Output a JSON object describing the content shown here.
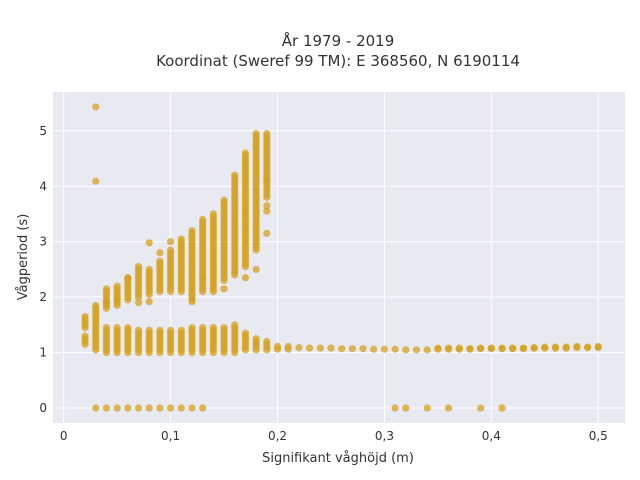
{
  "chart_data": {
    "type": "scatter",
    "title_line1": "År 1979 - 2019",
    "title_line2": "Koordinat (Sweref 99 TM): E 368560, N 6190114",
    "xlabel": "Signifikant våghöjd (m)",
    "ylabel": "Vågperiod (s)",
    "xlim": [
      -0.01,
      0.525
    ],
    "ylim": [
      -0.27,
      5.7
    ],
    "x_ticks": [
      0,
      0.1,
      0.2,
      0.3,
      0.4,
      0.5
    ],
    "x_tick_labels": [
      "0",
      "0,1",
      "0,2",
      "0,3",
      "0,4",
      "0,5"
    ],
    "y_ticks": [
      0,
      1,
      2,
      3,
      4,
      5
    ],
    "y_tick_labels": [
      "0",
      "1",
      "2",
      "3",
      "4",
      "5"
    ],
    "grid": true,
    "background": "#e9e9f2",
    "marker_color": "#d4a21d",
    "columns": [
      {
        "x": 0.02,
        "min": 1.45,
        "max": 1.65
      },
      {
        "x": 0.02,
        "min": 1.15,
        "max": 1.3
      },
      {
        "x": 0.03,
        "min": 1.3,
        "max": 1.85
      },
      {
        "x": 0.03,
        "min": 1.05,
        "max": 1.25
      },
      {
        "x": 0.04,
        "min": 1.8,
        "max": 2.15
      },
      {
        "x": 0.04,
        "min": 1.0,
        "max": 1.45
      },
      {
        "x": 0.05,
        "min": 1.85,
        "max": 2.2
      },
      {
        "x": 0.05,
        "min": 1.0,
        "max": 1.45
      },
      {
        "x": 0.06,
        "min": 1.95,
        "max": 2.35
      },
      {
        "x": 0.06,
        "min": 1.0,
        "max": 1.45
      },
      {
        "x": 0.07,
        "min": 2.0,
        "max": 2.55
      },
      {
        "x": 0.07,
        "min": 1.0,
        "max": 1.4
      },
      {
        "x": 0.08,
        "min": 2.05,
        "max": 2.5
      },
      {
        "x": 0.08,
        "min": 1.0,
        "max": 1.4
      },
      {
        "x": 0.09,
        "min": 2.1,
        "max": 2.65
      },
      {
        "x": 0.09,
        "min": 1.0,
        "max": 1.4
      },
      {
        "x": 0.1,
        "min": 2.1,
        "max": 2.85
      },
      {
        "x": 0.1,
        "min": 1.0,
        "max": 1.4
      },
      {
        "x": 0.11,
        "min": 2.1,
        "max": 3.05
      },
      {
        "x": 0.11,
        "min": 1.0,
        "max": 1.4
      },
      {
        "x": 0.12,
        "min": 1.95,
        "max": 3.2
      },
      {
        "x": 0.12,
        "min": 1.0,
        "max": 1.45
      },
      {
        "x": 0.13,
        "min": 2.1,
        "max": 3.4
      },
      {
        "x": 0.13,
        "min": 1.0,
        "max": 1.45
      },
      {
        "x": 0.14,
        "min": 2.1,
        "max": 3.5
      },
      {
        "x": 0.14,
        "min": 1.0,
        "max": 1.45
      },
      {
        "x": 0.15,
        "min": 2.3,
        "max": 3.75
      },
      {
        "x": 0.15,
        "min": 1.0,
        "max": 1.45
      },
      {
        "x": 0.16,
        "min": 2.4,
        "max": 4.2
      },
      {
        "x": 0.16,
        "min": 1.0,
        "max": 1.5
      },
      {
        "x": 0.17,
        "min": 2.55,
        "max": 4.55
      },
      {
        "x": 0.17,
        "min": 1.05,
        "max": 1.35
      },
      {
        "x": 0.18,
        "min": 2.85,
        "max": 4.95
      },
      {
        "x": 0.18,
        "min": 1.05,
        "max": 1.25
      },
      {
        "x": 0.19,
        "min": 3.8,
        "max": 4.95
      },
      {
        "x": 0.19,
        "min": 1.05,
        "max": 1.2
      },
      {
        "x": 0.2,
        "min": 1.06,
        "max": 1.14
      },
      {
        "x": 0.21,
        "min": 1.06,
        "max": 1.12
      }
    ],
    "points": [
      [
        0.03,
        5.43
      ],
      [
        0.03,
        4.09
      ],
      [
        0.04,
        1.9
      ],
      [
        0.05,
        1.97
      ],
      [
        0.06,
        2.34
      ],
      [
        0.07,
        1.9
      ],
      [
        0.08,
        1.92
      ],
      [
        0.08,
        2.98
      ],
      [
        0.09,
        2.8
      ],
      [
        0.1,
        3.0
      ],
      [
        0.12,
        1.92
      ],
      [
        0.13,
        2.35
      ],
      [
        0.15,
        2.15
      ],
      [
        0.17,
        2.35
      ],
      [
        0.17,
        4.6
      ],
      [
        0.18,
        2.5
      ],
      [
        0.19,
        3.15
      ],
      [
        0.19,
        3.65
      ],
      [
        0.19,
        4.12
      ],
      [
        0.19,
        3.55
      ],
      [
        0.22,
        1.09
      ],
      [
        0.23,
        1.08
      ],
      [
        0.24,
        1.08
      ],
      [
        0.25,
        1.08
      ],
      [
        0.26,
        1.07
      ],
      [
        0.27,
        1.07
      ],
      [
        0.28,
        1.07
      ],
      [
        0.29,
        1.06
      ],
      [
        0.3,
        1.06
      ],
      [
        0.31,
        1.06
      ],
      [
        0.32,
        1.05
      ],
      [
        0.33,
        1.05
      ],
      [
        0.34,
        1.05
      ],
      [
        0.35,
        1.06
      ],
      [
        0.36,
        1.06
      ],
      [
        0.37,
        1.06
      ],
      [
        0.38,
        1.06
      ],
      [
        0.39,
        1.07
      ],
      [
        0.4,
        1.07
      ],
      [
        0.41,
        1.07
      ],
      [
        0.42,
        1.07
      ],
      [
        0.43,
        1.08
      ],
      [
        0.44,
        1.08
      ],
      [
        0.45,
        1.08
      ],
      [
        0.46,
        1.08
      ],
      [
        0.47,
        1.08
      ],
      [
        0.48,
        1.09
      ],
      [
        0.49,
        1.09
      ],
      [
        0.5,
        1.09
      ],
      [
        0.35,
        1.08
      ],
      [
        0.36,
        1.08
      ],
      [
        0.37,
        1.08
      ],
      [
        0.38,
        1.07
      ],
      [
        0.39,
        1.08
      ],
      [
        0.4,
        1.08
      ],
      [
        0.41,
        1.08
      ],
      [
        0.42,
        1.08
      ],
      [
        0.43,
        1.07
      ],
      [
        0.44,
        1.09
      ],
      [
        0.45,
        1.1
      ],
      [
        0.46,
        1.1
      ],
      [
        0.47,
        1.1
      ],
      [
        0.48,
        1.11
      ],
      [
        0.49,
        1.1
      ],
      [
        0.5,
        1.11
      ],
      [
        0.03,
        0
      ],
      [
        0.04,
        0
      ],
      [
        0.05,
        0
      ],
      [
        0.06,
        0
      ],
      [
        0.07,
        0
      ],
      [
        0.08,
        0
      ],
      [
        0.09,
        0
      ],
      [
        0.1,
        0
      ],
      [
        0.11,
        0
      ],
      [
        0.12,
        0
      ],
      [
        0.13,
        0
      ],
      [
        0.31,
        0
      ],
      [
        0.32,
        0
      ],
      [
        0.34,
        0
      ],
      [
        0.36,
        0
      ],
      [
        0.39,
        0
      ],
      [
        0.41,
        0
      ]
    ]
  }
}
